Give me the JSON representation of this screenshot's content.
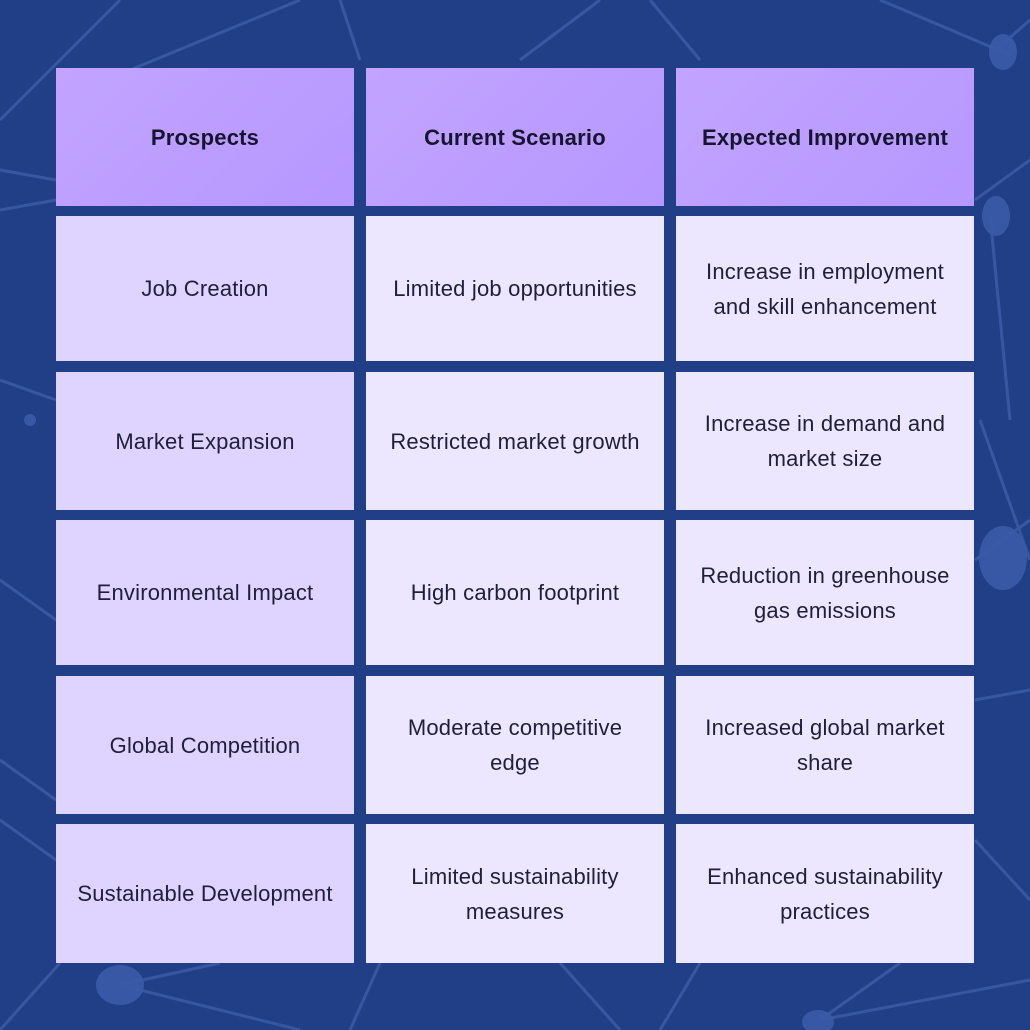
{
  "table": {
    "headers": [
      "Prospects",
      "Current Scenario",
      "Expected Improvement"
    ],
    "rows": [
      [
        "Job Creation",
        "Limited job opportunities",
        "Increase in employment and skill enhancement"
      ],
      [
        "Market Expansion",
        "Restricted market growth",
        "Increase in demand and market size"
      ],
      [
        "Environmental Impact",
        "High carbon footprint",
        "Reduction in greenhouse gas emissions"
      ],
      [
        "Global Competition",
        "Moderate competitive edge",
        "Increased global market share"
      ],
      [
        "Sustainable Development",
        "Limited sustainability measures",
        "Enhanced sustainability practices"
      ]
    ]
  },
  "colors": {
    "background": "#213f86",
    "header_cell": "#b99aff",
    "first_column_cell": "#dfd3ff",
    "body_cell": "#ece6ff"
  }
}
